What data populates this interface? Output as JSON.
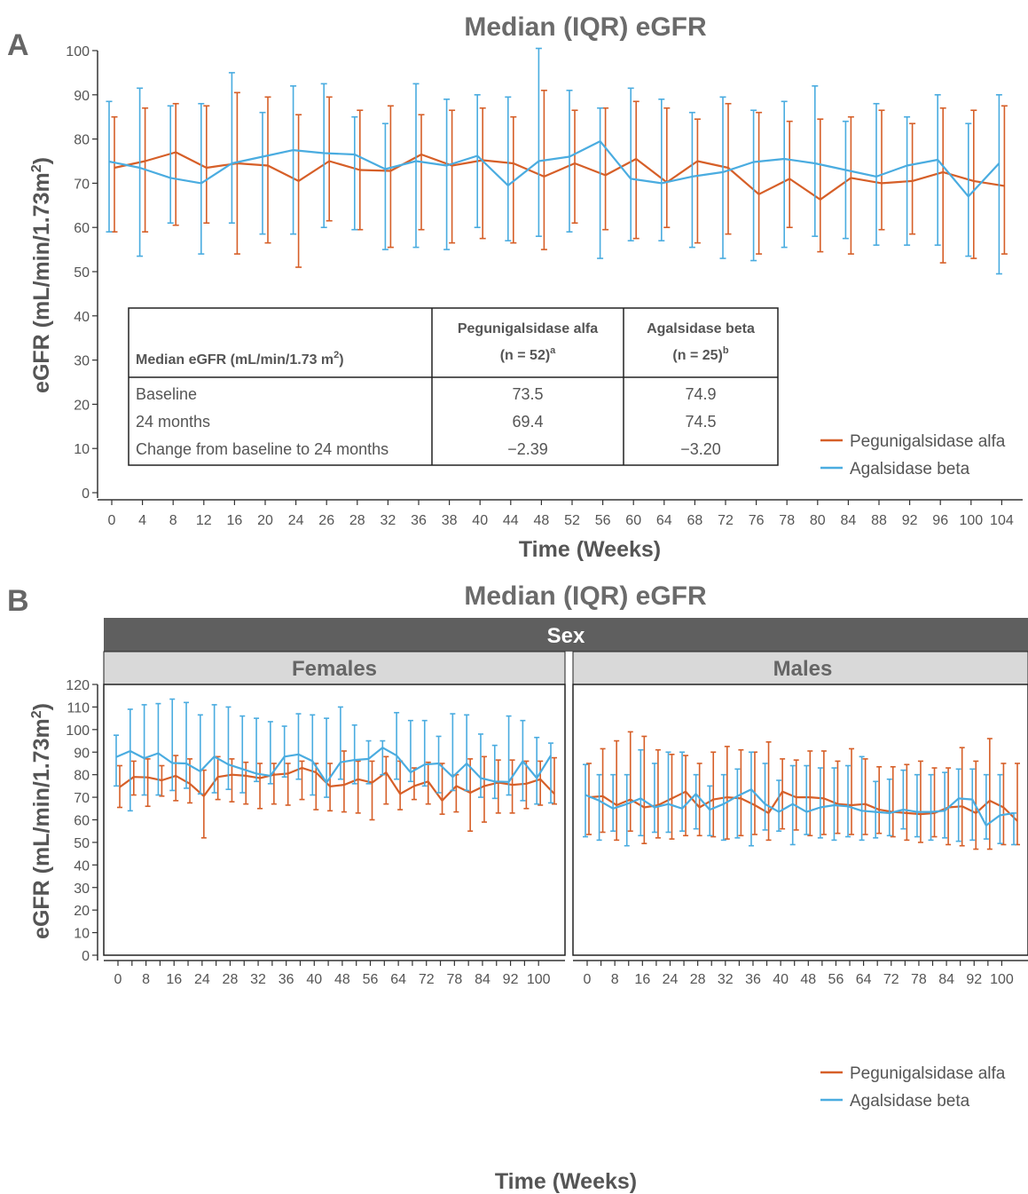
{
  "figure": {
    "panel_a_letter": "A",
    "panel_b_letter": "B",
    "colors": {
      "pegunigalsidase": "#d65f28",
      "agalsidase": "#4aace0",
      "axis": "#333333",
      "text": "#555555",
      "title": "#6b6b6b",
      "strip_dark": "#5f5f5f",
      "strip_light": "#d9d9d9"
    }
  },
  "table": {
    "header": {
      "label": "Median eGFR (mL/min/1.73 m",
      "label_sup": "2",
      "label_close": ")",
      "col1_line1": "Pegunigalsidase alfa",
      "col1_line2": "(n = 52)",
      "col1_sup": "a",
      "col2_line1": "Agalsidase beta",
      "col2_line2": "(n = 25)",
      "col2_sup": "b"
    },
    "rows": [
      {
        "label": "Baseline",
        "v1": "73.5",
        "v2": "74.9"
      },
      {
        "label": "24 months",
        "v1": "69.4",
        "v2": "74.5"
      },
      {
        "label": "Change from baseline to 24 months",
        "v1": "−2.39",
        "v2": "−3.20"
      }
    ]
  },
  "chart_data": [
    {
      "type": "line",
      "panel": "A",
      "title": "Median (IQR) eGFR",
      "xlabel": "Time (Weeks)",
      "ylabel": "eGFR (mL/min/1.73m",
      "ylabel_sup": "2",
      "ylabel_close": ")",
      "ylim": [
        0,
        100
      ],
      "yticks": [
        0,
        10,
        20,
        30,
        40,
        50,
        60,
        70,
        80,
        90,
        100
      ],
      "x": [
        0,
        4,
        8,
        12,
        16,
        20,
        24,
        26,
        28,
        32,
        36,
        38,
        40,
        44,
        48,
        52,
        56,
        60,
        64,
        68,
        72,
        76,
        78,
        80,
        84,
        88,
        92,
        96,
        100,
        104
      ],
      "legend": "bottom-right",
      "grid": false,
      "series": [
        {
          "name": "Pegunigalsidase alfa",
          "color": "#d65f28",
          "median": [
            73.5,
            75.0,
            77.0,
            73.5,
            74.5,
            74.0,
            70.5,
            75.0,
            73.0,
            72.8,
            76.5,
            74.0,
            75.2,
            74.5,
            71.5,
            74.5,
            71.8,
            75.5,
            70.2,
            75.0,
            73.5,
            67.5,
            71.0,
            66.3,
            71.2,
            70.0,
            70.5,
            72.5,
            70.5,
            69.4
          ],
          "q1": [
            59.0,
            59.0,
            60.5,
            61.0,
            54.0,
            56.5,
            51.0,
            61.5,
            59.5,
            55.5,
            59.5,
            56.5,
            57.5,
            56.5,
            55.0,
            61.0,
            59.5,
            57.5,
            60.0,
            56.5,
            58.5,
            54.0,
            60.0,
            54.5,
            54.0,
            59.5,
            58.5,
            52.0,
            53.0,
            54.0
          ],
          "q3": [
            85.0,
            87.0,
            88.0,
            87.5,
            90.5,
            89.5,
            85.5,
            89.5,
            86.5,
            87.5,
            85.5,
            86.5,
            87.0,
            85.0,
            91.0,
            86.5,
            87.0,
            88.5,
            87.0,
            84.5,
            88.0,
            86.0,
            84.0,
            84.5,
            85.0,
            86.5,
            83.5,
            87.0,
            86.5,
            87.5
          ]
        },
        {
          "name": "Agalsidase beta",
          "color": "#4aace0",
          "median": [
            74.9,
            73.5,
            71.2,
            70.0,
            74.5,
            76.0,
            77.5,
            76.8,
            76.5,
            73.2,
            75.0,
            74.0,
            76.2,
            69.5,
            75.0,
            76.0,
            79.5,
            71.0,
            70.0,
            71.5,
            72.5,
            74.8,
            75.5,
            74.5,
            73.0,
            71.5,
            74.0,
            75.3,
            67.0,
            74.5
          ],
          "q1": [
            59.0,
            53.5,
            61.0,
            54.0,
            61.0,
            58.5,
            58.5,
            60.0,
            59.5,
            55.0,
            55.5,
            55.0,
            60.0,
            57.0,
            58.0,
            59.0,
            53.0,
            57.0,
            57.0,
            55.5,
            53.0,
            52.5,
            55.5,
            58.0,
            57.5,
            56.0,
            56.0,
            56.0,
            53.5,
            49.5
          ],
          "q3": [
            88.5,
            91.5,
            87.5,
            88.0,
            95.0,
            86.0,
            92.0,
            92.5,
            85.0,
            83.5,
            92.5,
            89.0,
            90.0,
            89.5,
            100.5,
            91.0,
            87.0,
            91.5,
            89.0,
            86.0,
            89.5,
            86.5,
            88.5,
            92.0,
            84.0,
            88.0,
            85.0,
            90.0,
            83.5,
            90.0
          ]
        }
      ]
    },
    {
      "type": "line",
      "panel": "B",
      "title": "Median (IQR) eGFR",
      "strip": "Sex",
      "xlabel": "Time (Weeks)",
      "ylabel": "eGFR (mL/min/1.73m",
      "ylabel_sup": "2",
      "ylabel_close": ")",
      "ylim": [
        0,
        120
      ],
      "yticks": [
        0,
        10,
        20,
        30,
        40,
        50,
        60,
        70,
        80,
        90,
        100,
        110,
        120
      ],
      "xlim": [
        -1,
        106
      ],
      "xticks": [
        0,
        8,
        16,
        24,
        28,
        32,
        36,
        40,
        48,
        56,
        64,
        72,
        78,
        84,
        92,
        100
      ],
      "minor_xticks": [
        4,
        12,
        20,
        26,
        30,
        34,
        38,
        44,
        52,
        60,
        68,
        76,
        80,
        88,
        96
      ],
      "x": [
        0,
        4,
        8,
        12,
        16,
        20,
        24,
        26,
        28,
        30,
        32,
        34,
        36,
        38,
        40,
        44,
        48,
        52,
        56,
        60,
        64,
        68,
        72,
        76,
        78,
        80,
        84,
        88,
        92,
        96,
        100,
        104
      ],
      "legend": "bottom-right",
      "grid": false,
      "facets": [
        {
          "label": "Females",
          "series": [
            {
              "name": "Pegunigalsidase alfa",
              "color": "#d65f28",
              "median": [
                74.5,
                79.0,
                78.8,
                77.5,
                79.5,
                76.0,
                70.5,
                79.0,
                80.0,
                79.5,
                78.5,
                80.0,
                80.5,
                83.0,
                81.0,
                74.8,
                75.5,
                78.0,
                76.5,
                81.0,
                71.5,
                75.0,
                77.0,
                68.5,
                75.0,
                72.0,
                75.0,
                76.5,
                75.5,
                76.0,
                78.0,
                71.5
              ],
              "q1": [
                65.5,
                71.0,
                66.0,
                70.5,
                68.5,
                67.5,
                52.0,
                69.0,
                68.0,
                67.0,
                65.0,
                67.0,
                66.5,
                69.0,
                64.5,
                64.0,
                63.5,
                63.0,
                60.0,
                67.0,
                64.5,
                69.0,
                67.0,
                62.5,
                63.5,
                55.0,
                59.0,
                63.0,
                63.0,
                65.0,
                66.5,
                67.0
              ],
              "q3": [
                84.0,
                86.0,
                87.0,
                84.0,
                88.5,
                87.0,
                82.0,
                88.0,
                87.0,
                85.5,
                85.0,
                85.0,
                85.0,
                86.0,
                85.0,
                85.0,
                90.5,
                86.0,
                86.0,
                88.0,
                86.0,
                83.0,
                85.5,
                85.0,
                80.0,
                87.0,
                88.0,
                86.5,
                86.5,
                86.0,
                86.0,
                87.5
              ]
            },
            {
              "name": "Agalsidase beta",
              "color": "#4aace0",
              "median": [
                87.8,
                90.5,
                87.3,
                89.5,
                85.2,
                85.0,
                81.5,
                88.0,
                84.5,
                82.5,
                80.5,
                79.5,
                88.0,
                89.0,
                86.0,
                76.5,
                85.5,
                86.5,
                87.0,
                92.0,
                88.5,
                81.0,
                84.5,
                85.0,
                79.0,
                85.0,
                78.5,
                77.0,
                76.8,
                86.0,
                78.5,
                88.5
              ],
              "q1": [
                75.0,
                64.0,
                71.0,
                71.0,
                73.0,
                74.0,
                71.5,
                72.0,
                73.5,
                72.0,
                77.0,
                76.0,
                79.0,
                78.0,
                71.0,
                70.0,
                78.0,
                76.0,
                76.0,
                80.0,
                78.0,
                77.0,
                75.0,
                72.0,
                73.0,
                73.0,
                70.0,
                69.5,
                71.0,
                68.5,
                67.0,
                67.5
              ],
              "q3": [
                97.5,
                109.0,
                111.0,
                111.5,
                113.5,
                112.0,
                106.5,
                111.0,
                110.0,
                106.0,
                105.0,
                103.5,
                101.5,
                107.0,
                106.5,
                105.0,
                110.0,
                102.0,
                95.0,
                95.0,
                107.5,
                104.0,
                104.0,
                97.0,
                107.0,
                106.5,
                98.0,
                93.0,
                106.0,
                104.0,
                96.5,
                94.0
              ]
            }
          ]
        },
        {
          "label": "Males",
          "series": [
            {
              "name": "Pegunigalsidase alfa",
              "color": "#d65f28",
              "median": [
                70.0,
                70.5,
                66.5,
                69.0,
                65.5,
                66.5,
                69.5,
                72.5,
                65.5,
                69.0,
                70.0,
                69.5,
                66.5,
                63.0,
                72.5,
                70.0,
                70.0,
                69.5,
                67.0,
                66.5,
                67.0,
                64.5,
                63.5,
                63.0,
                62.5,
                63.0,
                65.5,
                66.0,
                63.0,
                68.5,
                65.5,
                59.5
              ],
              "q1": [
                53.5,
                54.5,
                51.0,
                55.0,
                49.5,
                52.0,
                51.5,
                53.0,
                53.0,
                52.5,
                51.5,
                53.0,
                53.5,
                51.0,
                56.0,
                55.5,
                53.0,
                53.5,
                54.0,
                53.5,
                53.5,
                54.0,
                52.5,
                51.0,
                50.0,
                52.5,
                49.0,
                48.5,
                47.0,
                47.0,
                49.0,
                49.0
              ],
              "q3": [
                85.0,
                91.5,
                95.0,
                99.0,
                97.0,
                91.0,
                89.0,
                88.5,
                85.0,
                90.0,
                92.5,
                91.0,
                90.0,
                94.5,
                87.0,
                86.5,
                90.5,
                90.5,
                86.0,
                91.5,
                87.0,
                83.5,
                83.5,
                84.5,
                86.0,
                83.0,
                83.0,
                92.0,
                86.0,
                96.0,
                85.0,
                85.0
              ]
            },
            {
              "name": "Agalsidase beta",
              "color": "#4aace0",
              "median": [
                71.0,
                68.5,
                65.0,
                67.0,
                69.5,
                65.5,
                67.0,
                65.0,
                71.5,
                64.5,
                67.0,
                70.5,
                73.5,
                67.0,
                63.5,
                67.0,
                63.5,
                65.5,
                66.5,
                66.0,
                64.0,
                63.5,
                63.0,
                64.5,
                63.5,
                63.5,
                64.0,
                69.5,
                69.0,
                57.5,
                62.0,
                63.0
              ],
              "q1": [
                52.5,
                51.0,
                55.0,
                48.5,
                53.0,
                54.5,
                54.5,
                55.0,
                56.0,
                53.0,
                51.0,
                52.0,
                48.5,
                55.5,
                55.0,
                49.0,
                53.5,
                52.0,
                51.0,
                52.5,
                51.0,
                52.0,
                53.0,
                56.0,
                52.5,
                51.0,
                52.0,
                50.5,
                51.0,
                51.5,
                49.5,
                49.0
              ],
              "q3": [
                84.5,
                80.0,
                80.0,
                80.0,
                91.0,
                85.0,
                90.0,
                90.0,
                80.0,
                75.0,
                80.0,
                82.5,
                90.0,
                85.0,
                77.5,
                84.0,
                84.0,
                83.0,
                83.0,
                84.0,
                88.0,
                77.0,
                78.0,
                82.0,
                80.0,
                80.0,
                81.0,
                82.5,
                82.5,
                80.0,
                80.0,
                63.0
              ]
            }
          ]
        }
      ]
    }
  ]
}
